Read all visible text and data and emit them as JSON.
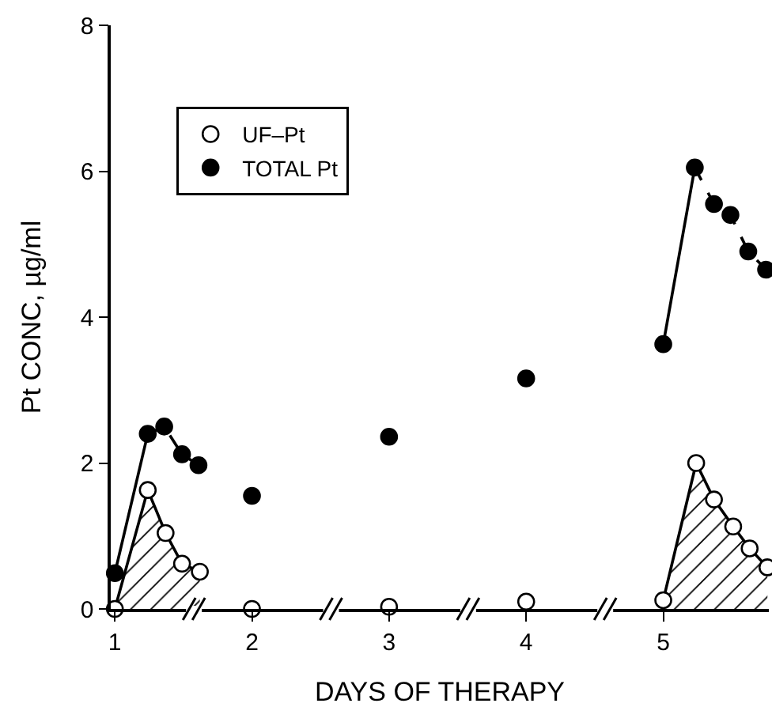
{
  "chart_data": {
    "type": "scatter",
    "xlabel": "DAYS OF THERAPY",
    "ylabel": "Pt CONC, µg/ml",
    "xlim": [
      0.97,
      5.77
    ],
    "xticks": [
      1,
      2,
      3,
      4,
      5
    ],
    "ylim": [
      0,
      8
    ],
    "yticks": [
      0,
      2,
      4,
      6,
      8
    ],
    "grid": false,
    "legend": "top left",
    "marker": "circle",
    "series": [
      {
        "type": "line",
        "color": "#000000",
        "line_style": "solid",
        "marker": "none",
        "x": [
          1,
          1.24,
          4.5,
          5,
          5.23
        ],
        "values": [
          0.49,
          2.4,
          null,
          3.63,
          6.05
        ]
      },
      {
        "type": "line",
        "color": "#000000",
        "line_style": "dashed",
        "marker": "none",
        "x": [
          1.24,
          1.36,
          1.49,
          1.61,
          3,
          5.23,
          5.37,
          5.49,
          5.62,
          5.75
        ],
        "values": [
          2.4,
          2.5,
          2.12,
          1.97,
          null,
          6.05,
          5.55,
          5.4,
          4.9,
          4.65
        ]
      },
      {
        "type": "area",
        "color": "#ffffff",
        "x": [
          1,
          1.24,
          1.37,
          1.49,
          1.62
        ],
        "values": [
          0,
          1.63,
          1.04,
          0.62,
          0.51
        ]
      },
      {
        "type": "area",
        "color": "#ffffff",
        "x": [
          5,
          5.24,
          5.37,
          5.51,
          5.63,
          5.76
        ],
        "values": [
          0.12,
          2.0,
          1.5,
          1.13,
          0.83,
          0.57
        ]
      },
      {
        "type": "scatter",
        "name": "UF–Pt",
        "color": "#ffffff",
        "x": [
          2,
          3,
          4
        ],
        "values": [
          0,
          0.03,
          0.1
        ]
      },
      {
        "name": "TOTAL Pt",
        "color": "#000000",
        "x": [
          1,
          1.24,
          1.36,
          1.49,
          1.61,
          2,
          3,
          4,
          5,
          5.23,
          5.37,
          5.49,
          5.62,
          5.75
        ],
        "values": [
          0.49,
          2.4,
          2.5,
          2.12,
          1.97,
          1.55,
          2.36,
          3.16,
          3.63,
          6.05,
          5.55,
          5.4,
          4.9,
          4.65
        ]
      }
    ]
  }
}
